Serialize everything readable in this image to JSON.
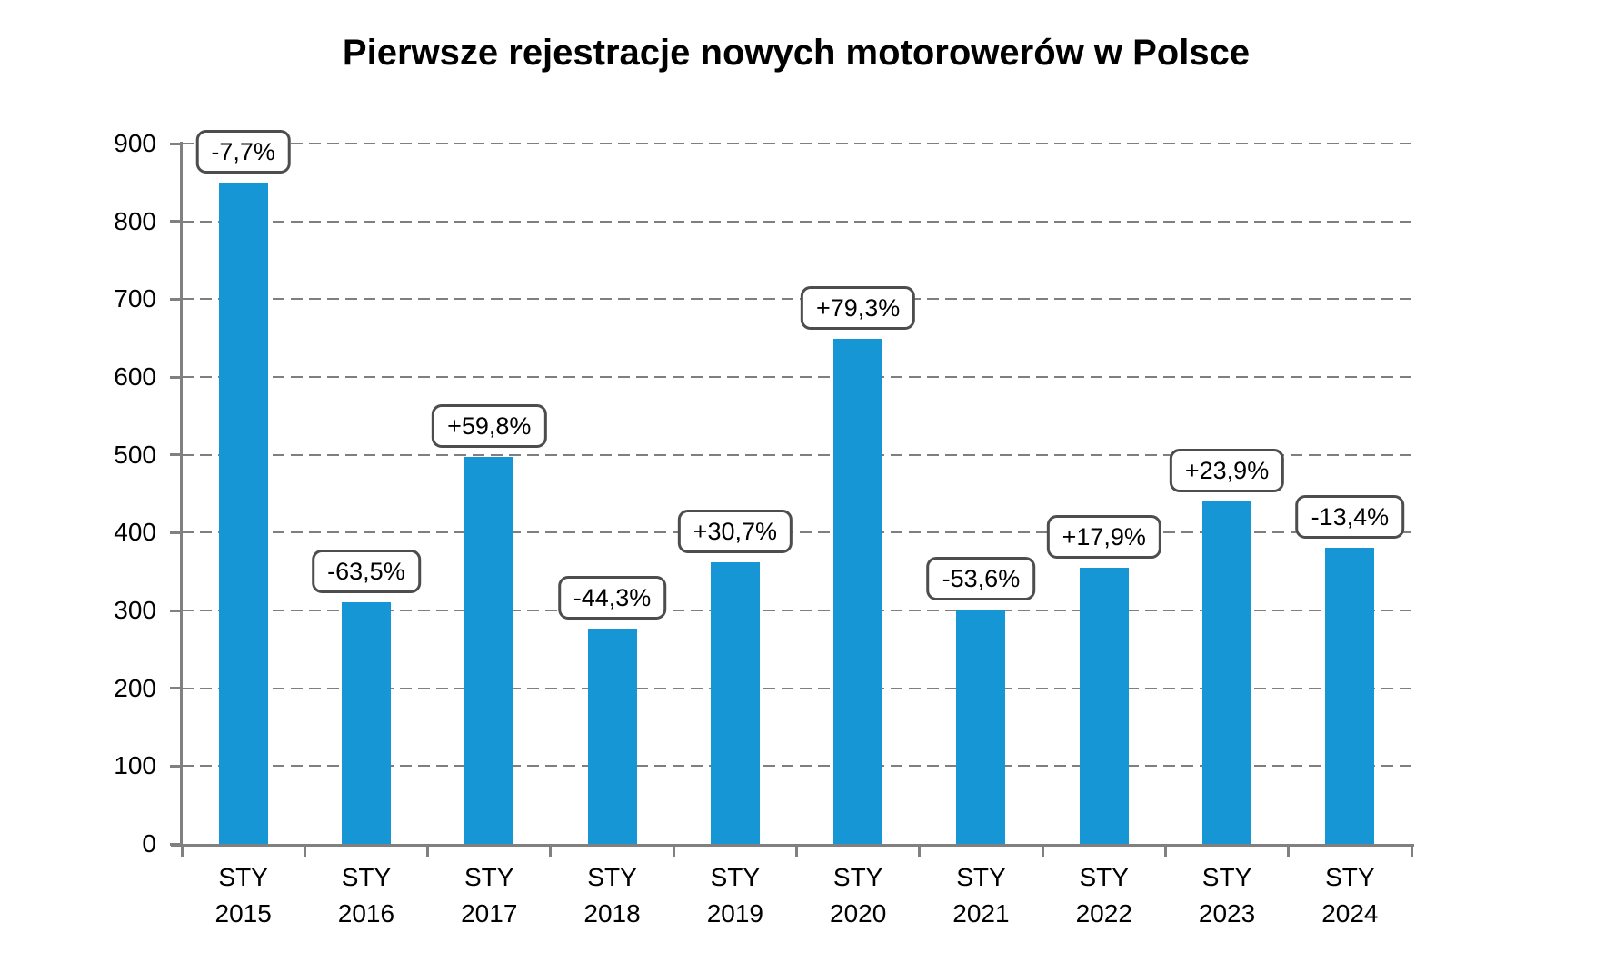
{
  "chart_data": {
    "type": "bar",
    "title": "Pierwsze rejestracje nowych motorowerów w Polsce",
    "categories": [
      "STY 2015",
      "STY 2016",
      "STY 2017",
      "STY 2018",
      "STY 2019",
      "STY 2020",
      "STY 2021",
      "STY 2022",
      "STY 2023",
      "STY 2024"
    ],
    "x_tick_month": "STY",
    "x_tick_years": [
      "2015",
      "2016",
      "2017",
      "2018",
      "2019",
      "2020",
      "2021",
      "2022",
      "2023",
      "2024"
    ],
    "values": [
      850,
      311,
      497,
      277,
      362,
      649,
      301,
      355,
      440,
      381
    ],
    "data_labels": [
      "-7,7%",
      "-63,5%",
      "+59,8%",
      "-44,3%",
      "+30,7%",
      "+79,3%",
      "-53,6%",
      "+17,9%",
      "+23,9%",
      "-13,4%"
    ],
    "ylim": [
      0,
      900
    ],
    "ytick_interval": 100,
    "yticks": [
      0,
      100,
      200,
      300,
      400,
      500,
      600,
      700,
      800,
      900
    ],
    "xlabel": "",
    "ylabel": "",
    "grid": "horizontal-dashed",
    "legend": false,
    "colors": {
      "bar": "#1696D4",
      "grid": "#7F7F7F",
      "axis": "#808080",
      "callout_border": "#4D4D4D",
      "text": "#000000",
      "background": "#FFFFFF"
    }
  }
}
